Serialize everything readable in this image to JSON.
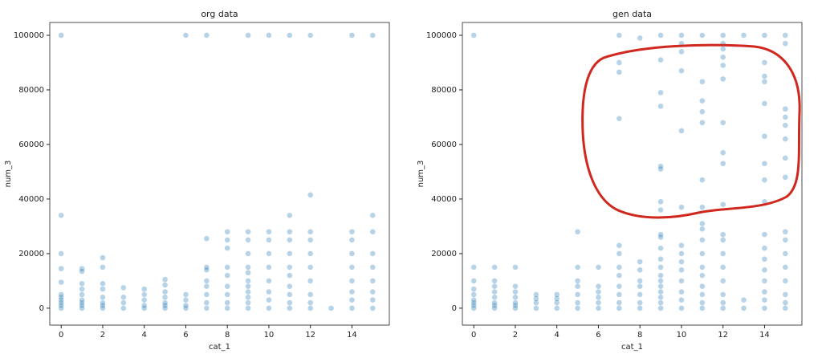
{
  "chart_data": [
    {
      "type": "scatter",
      "title": "org data",
      "xlabel": "cat_1",
      "ylabel": "num_3",
      "xlim": [
        -0.55,
        15.8
      ],
      "ylim": [
        -6200,
        104700
      ],
      "xticks": [
        0,
        2,
        4,
        6,
        8,
        10,
        12,
        14
      ],
      "yticks": [
        0,
        20000,
        40000,
        60000,
        80000,
        100000
      ],
      "series": [
        {
          "color": "#1f77b4",
          "x": [
            0,
            0,
            0,
            0,
            0,
            0,
            0,
            0,
            0,
            0,
            0,
            1,
            1,
            1,
            1,
            1,
            1,
            1,
            1,
            1,
            2,
            2,
            2,
            2,
            2,
            2,
            2,
            2,
            3,
            3,
            3,
            3,
            4,
            4,
            4,
            4,
            4,
            5,
            5,
            5,
            5,
            5,
            5,
            5,
            6,
            6,
            6,
            6,
            6,
            7,
            7,
            7,
            7,
            7,
            7,
            7,
            7,
            7,
            8,
            8,
            8,
            8,
            8,
            8,
            8,
            8,
            8,
            9,
            9,
            9,
            9,
            9,
            9,
            9,
            9,
            9,
            9,
            9,
            9,
            10,
            10,
            10,
            10,
            10,
            10,
            10,
            10,
            10,
            11,
            11,
            11,
            11,
            11,
            11,
            11,
            11,
            11,
            11,
            11,
            12,
            12,
            12,
            12,
            12,
            12,
            12,
            12,
            12,
            12,
            13,
            14,
            14,
            14,
            14,
            14,
            14,
            14,
            14,
            14,
            15,
            15,
            15,
            15,
            15,
            15,
            15,
            15,
            15
          ],
          "values": [
            0,
            1000,
            2000,
            3000,
            4000,
            5000,
            9500,
            14500,
            20000,
            34000,
            100000,
            0,
            1000,
            2000,
            3000,
            5000,
            7000,
            9000,
            13500,
            14500,
            0,
            1000,
            2000,
            4000,
            7000,
            9000,
            15000,
            18500,
            0,
            2000,
            4000,
            7500,
            0,
            1000,
            3000,
            5000,
            7000,
            0,
            1000,
            2000,
            4000,
            6000,
            8500,
            10500,
            0,
            1000,
            3000,
            5000,
            100000,
            0,
            2000,
            5000,
            8000,
            10000,
            14000,
            15000,
            25500,
            100000,
            0,
            2000,
            5000,
            8000,
            12000,
            15000,
            22000,
            25000,
            28000,
            0,
            2000,
            4000,
            6000,
            8000,
            10000,
            13000,
            15000,
            20000,
            25000,
            28000,
            100000,
            0,
            3000,
            6000,
            10000,
            15000,
            20000,
            25000,
            28000,
            100000,
            0,
            2000,
            5000,
            8000,
            12000,
            15000,
            20000,
            25000,
            28000,
            34000,
            100000,
            0,
            2000,
            5000,
            10000,
            15000,
            20000,
            25000,
            28000,
            41500,
            100000,
            0,
            0,
            3000,
            6000,
            10000,
            15000,
            20000,
            25000,
            28000,
            100000,
            0,
            3000,
            6000,
            10000,
            15000,
            20000,
            28000,
            34000,
            100000
          ]
        }
      ]
    },
    {
      "type": "scatter",
      "title": "gen data",
      "xlabel": "cat_1",
      "ylabel": "num_3",
      "xlim": [
        -0.55,
        15.8
      ],
      "ylim": [
        -6200,
        104700
      ],
      "xticks": [
        0,
        2,
        4,
        6,
        8,
        10,
        12,
        14
      ],
      "yticks": [
        0,
        20000,
        40000,
        60000,
        80000,
        100000
      ],
      "series": [
        {
          "color": "#1f77b4",
          "x": [
            0,
            0,
            0,
            0,
            0,
            0,
            0,
            0,
            0,
            1,
            1,
            1,
            1,
            1,
            1,
            1,
            1,
            2,
            2,
            2,
            2,
            2,
            2,
            2,
            3,
            3,
            3,
            3,
            4,
            4,
            4,
            4,
            5,
            5,
            5,
            5,
            5,
            5,
            5,
            6,
            6,
            6,
            6,
            6,
            6,
            7,
            7,
            7,
            7,
            7,
            7,
            7,
            7,
            7,
            7,
            7,
            7,
            8,
            8,
            8,
            8,
            8,
            8,
            8,
            8,
            9,
            9,
            9,
            9,
            9,
            9,
            9,
            9,
            9,
            9,
            9,
            9,
            9,
            9,
            9,
            9,
            9,
            9,
            9,
            9,
            10,
            10,
            10,
            10,
            10,
            10,
            10,
            10,
            10,
            10,
            10,
            10,
            10,
            10,
            11,
            11,
            11,
            11,
            11,
            11,
            11,
            11,
            11,
            11,
            11,
            11,
            11,
            11,
            11,
            11,
            11,
            12,
            12,
            12,
            12,
            12,
            12,
            12,
            12,
            12,
            12,
            12,
            12,
            12,
            12,
            12,
            12,
            12,
            12,
            13,
            13,
            13,
            14,
            14,
            14,
            14,
            14,
            14,
            14,
            14,
            14,
            14,
            14,
            14,
            14,
            14,
            14,
            14,
            14,
            15,
            15,
            15,
            15,
            15,
            15,
            15,
            15,
            15,
            15,
            15,
            15,
            15,
            15,
            15,
            15
          ],
          "values": [
            0,
            1000,
            2000,
            3000,
            5000,
            7000,
            10000,
            15000,
            100000,
            0,
            1000,
            2000,
            4000,
            6000,
            8000,
            10000,
            15000,
            0,
            1000,
            2000,
            4000,
            6000,
            8000,
            15000,
            0,
            2000,
            3500,
            5000,
            0,
            2000,
            3500,
            5000,
            0,
            2000,
            5000,
            8000,
            10000,
            15000,
            28000,
            0,
            2000,
            4000,
            6000,
            8000,
            15000,
            0,
            2000,
            5000,
            8000,
            12000,
            15000,
            20000,
            23000,
            69500,
            86500,
            90000,
            100000,
            0,
            2000,
            5000,
            8000,
            10000,
            14000,
            17000,
            99000,
            0,
            2000,
            4000,
            6000,
            8000,
            10000,
            12000,
            15000,
            18000,
            22000,
            26000,
            27000,
            36000,
            39000,
            51000,
            52000,
            74000,
            79000,
            91000,
            100000,
            0,
            3000,
            6000,
            10000,
            14000,
            17000,
            20000,
            23000,
            37000,
            65000,
            87000,
            94000,
            97000,
            100000,
            0,
            2000,
            5000,
            8000,
            12000,
            15000,
            20000,
            25000,
            29000,
            31000,
            37000,
            47000,
            68000,
            72000,
            76000,
            83000,
            100000,
            0,
            2000,
            5000,
            10000,
            15000,
            20000,
            25000,
            27000,
            38000,
            53000,
            57000,
            68000,
            84000,
            89000,
            92000,
            95000,
            97000,
            100000,
            0,
            3000,
            100000,
            0,
            3000,
            6000,
            10000,
            14000,
            18000,
            22000,
            27000,
            39000,
            47000,
            53000,
            63000,
            75000,
            83000,
            85000,
            90000,
            100000,
            0,
            2000,
            5000,
            10000,
            15000,
            20000,
            25000,
            28000,
            48000,
            55000,
            62000,
            67000,
            70000,
            73000,
            97000,
            100000
          ]
        }
      ]
    }
  ]
}
